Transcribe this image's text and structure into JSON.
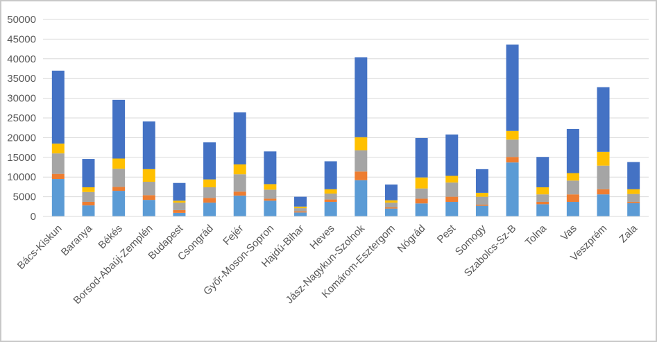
{
  "chart_data": {
    "type": "bar",
    "stacked": true,
    "title": "",
    "xlabel": "",
    "ylabel": "",
    "ylim": [
      0,
      50000
    ],
    "y_ticks": [
      "0",
      "5000",
      "10000",
      "15000",
      "20000",
      "25000",
      "30000",
      "35000",
      "40000",
      "45000",
      "50000"
    ],
    "grid": true,
    "legend": "none",
    "categories": [
      "Bács-Kiskun",
      "Baranya",
      "Békés",
      "Borsod-Abaúj-Zemplén",
      "Budapest",
      "Csongrád",
      "Fejér",
      "Győr-Moson-Sopron",
      "Hajdú-Bihar",
      "Heves",
      "Jász-Nagykun-Szolnok",
      "Komárom-Esztergom",
      "Nógrád",
      "Pest",
      "Somogy",
      "Szabolcs-Sz-B",
      "Tolna",
      "Vas",
      "Veszprém",
      "Zala"
    ],
    "series": [
      {
        "color": "#5b9bd5",
        "values": [
          9500,
          2800,
          6500,
          4200,
          900,
          3500,
          5300,
          4000,
          1000,
          3700,
          9200,
          2000,
          3300,
          3700,
          2700,
          13700,
          3100,
          3700,
          5600,
          3400
        ]
      },
      {
        "color": "#ed7d31",
        "values": [
          1300,
          900,
          1000,
          1200,
          700,
          1200,
          1000,
          500,
          300,
          600,
          2200,
          300,
          1200,
          1300,
          300,
          1400,
          600,
          1900,
          1300,
          300
        ]
      },
      {
        "color": "#a5a5a5",
        "values": [
          5200,
          2500,
          4600,
          3400,
          1900,
          2700,
          4400,
          2300,
          800,
          1500,
          5400,
          1200,
          2600,
          3600,
          2000,
          4400,
          1900,
          3500,
          6000,
          2000
        ]
      },
      {
        "color": "#ffc000",
        "values": [
          2500,
          1200,
          2600,
          3200,
          500,
          2000,
          2500,
          1400,
          400,
          1100,
          3300,
          600,
          2800,
          1700,
          1000,
          2200,
          1800,
          1900,
          3500,
          1200
        ]
      },
      {
        "color": "#4472c4",
        "values": [
          18500,
          7200,
          14900,
          12100,
          4500,
          9400,
          13200,
          8300,
          2500,
          7100,
          20300,
          4000,
          10000,
          10500,
          6000,
          21900,
          7700,
          11200,
          16400,
          6900
        ]
      }
    ]
  }
}
